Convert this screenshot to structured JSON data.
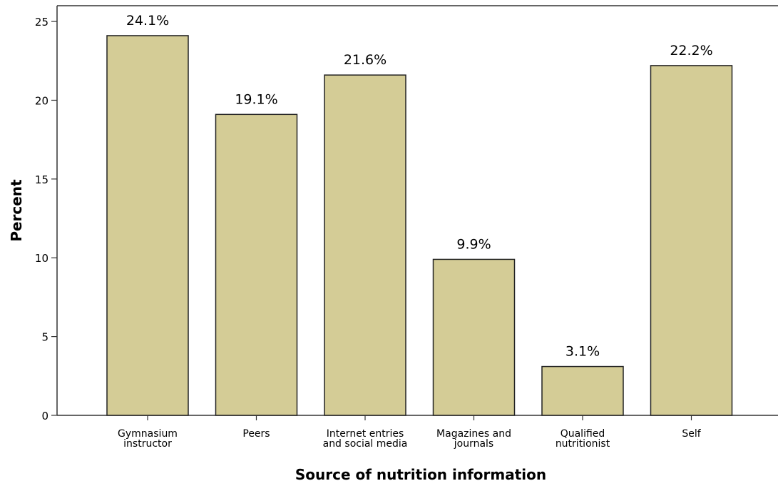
{
  "chart_data": {
    "type": "bar",
    "title": "",
    "xlabel": "Source of nutrition information",
    "ylabel": "Percent",
    "ylim": [
      0,
      26
    ],
    "yticks": [
      0,
      5,
      10,
      15,
      20,
      25
    ],
    "grid": false,
    "categories": [
      [
        "Gymnasium",
        "instructor"
      ],
      [
        "Peers"
      ],
      [
        "Internet entries",
        "and social media"
      ],
      [
        "Magazines and",
        "journals"
      ],
      [
        "Qualified",
        "nutritionist"
      ],
      [
        "Self"
      ]
    ],
    "values": [
      24.1,
      19.1,
      21.6,
      9.9,
      3.1,
      22.2
    ],
    "data_labels": [
      "24.1%",
      "19.1%",
      "21.6%",
      "9.9%",
      "3.1%",
      "22.2%"
    ],
    "colors": {
      "bar_fill": "#d4cc96",
      "bar_stroke": "#222222",
      "axis": "#333333",
      "text": "#000000"
    }
  }
}
